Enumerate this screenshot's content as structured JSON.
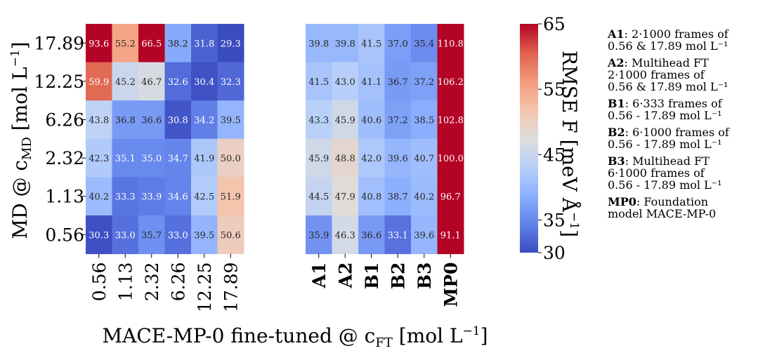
{
  "chart_data": {
    "type": "heatmap",
    "ylabel": "MD @ c",
    "ylabel_sub": "MD",
    "ylabel_unit": "[mol L",
    "ylabel_unit_sup": "−1",
    "ylabel_unit_end": "]",
    "xlabel": "MACE-MP-0 fine-tuned @ c",
    "xlabel_sub": "FT",
    "xlabel_unit": "[mol L",
    "xlabel_unit_sup": "−1",
    "xlabel_unit_end": "]",
    "rows": [
      "17.89",
      "12.25",
      "6.26",
      "2.32",
      "1.13",
      "0.56"
    ],
    "panels": [
      {
        "columns": [
          "0.56",
          "1.13",
          "2.32",
          "6.26",
          "12.25",
          "17.89"
        ],
        "column_bold": false,
        "values": [
          [
            93.6,
            55.2,
            66.5,
            38.2,
            31.8,
            29.3
          ],
          [
            59.9,
            45.2,
            46.7,
            32.6,
            30.4,
            32.3
          ],
          [
            43.8,
            36.8,
            36.6,
            30.8,
            34.2,
            39.5
          ],
          [
            42.3,
            35.1,
            35.0,
            34.7,
            41.9,
            50.0
          ],
          [
            40.2,
            33.3,
            33.9,
            34.6,
            42.5,
            51.9
          ],
          [
            30.3,
            33.0,
            35.7,
            33.0,
            39.5,
            50.6
          ]
        ]
      },
      {
        "columns": [
          "A1",
          "A2",
          "B1",
          "B2",
          "B3",
          "MP0"
        ],
        "column_bold": true,
        "values": [
          [
            39.8,
            39.8,
            41.5,
            37.0,
            35.4,
            110.8
          ],
          [
            41.5,
            43.0,
            41.1,
            36.7,
            37.2,
            106.2
          ],
          [
            43.3,
            45.9,
            40.6,
            37.2,
            38.5,
            102.8
          ],
          [
            45.9,
            48.8,
            42.0,
            39.6,
            40.7,
            100.0
          ],
          [
            44.5,
            47.9,
            40.8,
            38.7,
            40.2,
            96.7
          ],
          [
            35.9,
            46.3,
            36.6,
            33.1,
            39.6,
            91.1
          ]
        ]
      }
    ],
    "colorbar": {
      "colormap": "coolwarm",
      "vmin": 30,
      "vmax": 65,
      "ticks": [
        30,
        35,
        45,
        55,
        65
      ],
      "label": "RMSE F [meV Å",
      "label_sup": "−1",
      "label_end": "]"
    }
  },
  "legend": [
    {
      "key": "A1",
      "lines": [
        ": 2·1000 frames of",
        "0.56 & 17.89 mol L⁻¹"
      ]
    },
    {
      "key": "A2",
      "lines": [
        ": Multihead FT",
        "2·1000 frames of",
        "0.56 & 17.89 mol L⁻¹"
      ]
    },
    {
      "key": "B1",
      "lines": [
        ": 6·333 frames of",
        "0.56 - 17.89 mol L⁻¹"
      ]
    },
    {
      "key": "B2",
      "lines": [
        ": 6·1000 frames of",
        "0.56 - 17.89 mol L⁻¹"
      ]
    },
    {
      "key": "B3",
      "lines": [
        ": Multihead FT",
        "6·1000 frames of",
        "0.56 - 17.89 mol L⁻¹"
      ]
    },
    {
      "key": "MP0",
      "lines": [
        ": Foundation",
        "model MACE-MP-0"
      ]
    }
  ]
}
